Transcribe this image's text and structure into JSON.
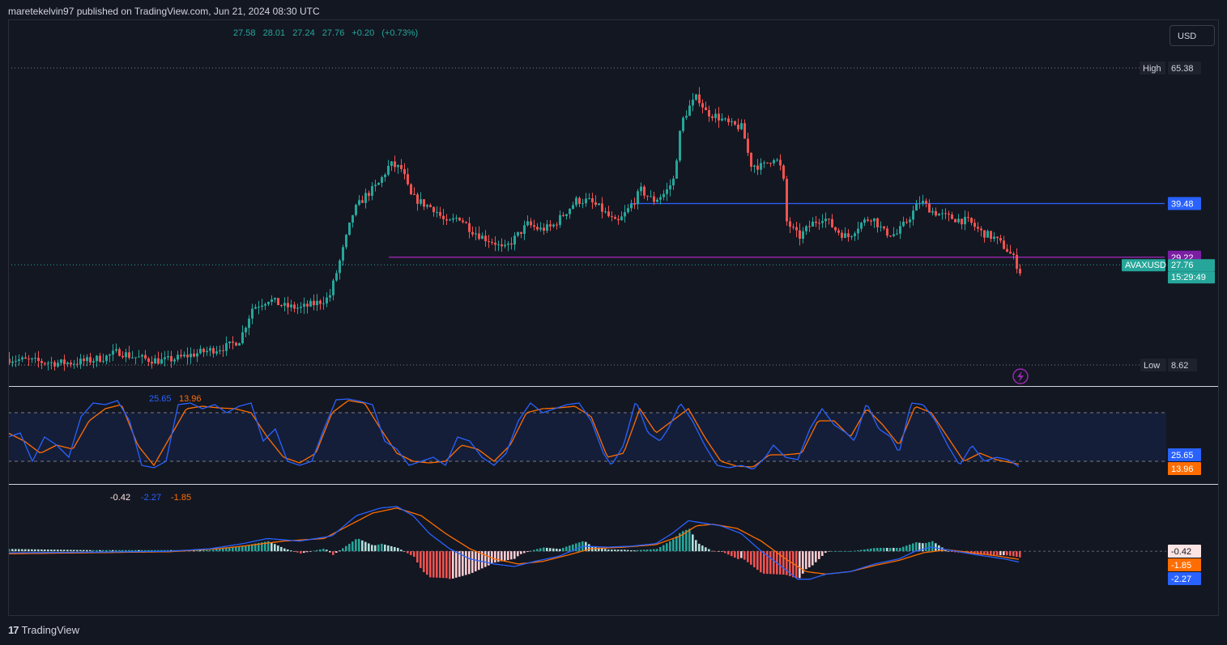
{
  "header": {
    "published": "maretekelvin97 published on TradingView.com, Jun 21, 2024 08:30 UTC"
  },
  "ohlc": {
    "open": "27.58",
    "high": "28.01",
    "low": "27.24",
    "close": "27.76",
    "change": "+0.20 (+0.73%)"
  },
  "currency_button": "USD",
  "footer": {
    "brand": "TradingView",
    "logo_text": "17"
  },
  "colors": {
    "bg": "#131722",
    "up": "#26a69a",
    "down": "#ef5350",
    "blue_line": "#2962ff",
    "purple_line": "#9c27b0",
    "stoch_k": "#2962ff",
    "stoch_d": "#ff6d00",
    "hist_up": "#26a69a",
    "hist_down": "#ef5350"
  },
  "chart_data": [
    {
      "type": "candlestick",
      "symbol": "AVAXUSD",
      "price_labels": {
        "high_label": "High",
        "high": 65.38,
        "low_label": "Low",
        "low": 8.62,
        "resistance": 39.48,
        "support": 29.22,
        "current": 27.76,
        "countdown": "15:29:49"
      },
      "ylim": [
        8.62,
        65.38
      ],
      "close_path": [
        [
          0,
          9.8
        ],
        [
          20,
          9.5
        ],
        [
          40,
          9.2
        ],
        [
          60,
          9.0
        ],
        [
          80,
          9.1
        ],
        [
          100,
          9.5
        ],
        [
          120,
          10.2
        ],
        [
          135,
          11.2
        ],
        [
          150,
          10.3
        ],
        [
          170,
          9.7
        ],
        [
          190,
          9.4
        ],
        [
          210,
          10.0
        ],
        [
          230,
          10.8
        ],
        [
          250,
          11.5
        ],
        [
          270,
          12.2
        ],
        [
          285,
          13.5
        ],
        [
          300,
          19.5
        ],
        [
          320,
          21.2
        ],
        [
          340,
          19.8
        ],
        [
          360,
          19.5
        ],
        [
          380,
          20.5
        ],
        [
          395,
          21.5
        ],
        [
          410,
          29.5
        ],
        [
          425,
          38.0
        ],
        [
          440,
          41.0
        ],
        [
          455,
          43.0
        ],
        [
          470,
          47.0
        ],
        [
          485,
          46.0
        ],
        [
          495,
          41.0
        ],
        [
          510,
          39.5
        ],
        [
          525,
          38.5
        ],
        [
          540,
          35.5
        ],
        [
          555,
          37.0
        ],
        [
          570,
          34.5
        ],
        [
          585,
          33.0
        ],
        [
          600,
          32.0
        ],
        [
          610,
          30.5
        ],
        [
          625,
          33.0
        ],
        [
          640,
          35.5
        ],
        [
          655,
          34.5
        ],
        [
          670,
          35.0
        ],
        [
          685,
          37.5
        ],
        [
          700,
          40.0
        ],
        [
          715,
          40.0
        ],
        [
          730,
          38.5
        ],
        [
          750,
          35.5
        ],
        [
          765,
          38.5
        ],
        [
          780,
          42.0
        ],
        [
          795,
          40.0
        ],
        [
          810,
          41.5
        ],
        [
          820,
          44.0
        ],
        [
          830,
          55.0
        ],
        [
          840,
          58.0
        ],
        [
          850,
          60.0
        ],
        [
          860,
          57.0
        ],
        [
          875,
          56.0
        ],
        [
          890,
          54.5
        ],
        [
          905,
          54.0
        ],
        [
          915,
          47.0
        ],
        [
          930,
          46.5
        ],
        [
          945,
          48.5
        ],
        [
          955,
          45.5
        ],
        [
          960,
          36.0
        ],
        [
          975,
          33.0
        ],
        [
          990,
          35.5
        ],
        [
          1005,
          37.0
        ],
        [
          1020,
          34.5
        ],
        [
          1035,
          33.0
        ],
        [
          1050,
          35.5
        ],
        [
          1065,
          37.0
        ],
        [
          1080,
          34.0
        ],
        [
          1095,
          33.5
        ],
        [
          1110,
          36.5
        ],
        [
          1125,
          40.0
        ],
        [
          1140,
          38.0
        ],
        [
          1155,
          37.0
        ],
        [
          1170,
          36.5
        ],
        [
          1185,
          36.0
        ],
        [
          1200,
          34.0
        ],
        [
          1215,
          33.0
        ],
        [
          1230,
          31.0
        ],
        [
          1240,
          29.0
        ],
        [
          1248,
          26.5
        ],
        [
          1255,
          27.5
        ],
        [
          1260,
          27.76
        ]
      ]
    },
    {
      "type": "line",
      "name_values": {
        "k": "25.65",
        "d": "13.96"
      },
      "ylim": [
        0,
        100
      ],
      "bands": [
        20,
        80
      ],
      "k_path": [
        [
          0,
          50
        ],
        [
          15,
          55
        ],
        [
          30,
          20
        ],
        [
          45,
          50
        ],
        [
          60,
          40
        ],
        [
          75,
          25
        ],
        [
          90,
          75
        ],
        [
          105,
          92
        ],
        [
          120,
          90
        ],
        [
          135,
          95
        ],
        [
          150,
          70
        ],
        [
          165,
          15
        ],
        [
          180,
          12
        ],
        [
          195,
          20
        ],
        [
          210,
          90
        ],
        [
          225,
          92
        ],
        [
          240,
          85
        ],
        [
          255,
          90
        ],
        [
          270,
          80
        ],
        [
          285,
          88
        ],
        [
          300,
          92
        ],
        [
          315,
          45
        ],
        [
          330,
          60
        ],
        [
          345,
          20
        ],
        [
          360,
          15
        ],
        [
          375,
          20
        ],
        [
          390,
          60
        ],
        [
          405,
          96
        ],
        [
          420,
          97
        ],
        [
          435,
          94
        ],
        [
          450,
          90
        ],
        [
          465,
          45
        ],
        [
          480,
          35
        ],
        [
          495,
          15
        ],
        [
          510,
          20
        ],
        [
          525,
          25
        ],
        [
          540,
          15
        ],
        [
          555,
          50
        ],
        [
          570,
          45
        ],
        [
          585,
          25
        ],
        [
          600,
          15
        ],
        [
          615,
          30
        ],
        [
          630,
          70
        ],
        [
          645,
          92
        ],
        [
          660,
          80
        ],
        [
          675,
          85
        ],
        [
          690,
          90
        ],
        [
          705,
          92
        ],
        [
          720,
          70
        ],
        [
          735,
          30
        ],
        [
          745,
          15
        ],
        [
          760,
          40
        ],
        [
          775,
          95
        ],
        [
          790,
          55
        ],
        [
          805,
          45
        ],
        [
          815,
          60
        ],
        [
          830,
          92
        ],
        [
          845,
          70
        ],
        [
          860,
          40
        ],
        [
          875,
          15
        ],
        [
          890,
          12
        ],
        [
          905,
          15
        ],
        [
          920,
          10
        ],
        [
          935,
          25
        ],
        [
          945,
          40
        ],
        [
          960,
          25
        ],
        [
          975,
          22
        ],
        [
          990,
          60
        ],
        [
          1005,
          85
        ],
        [
          1020,
          65
        ],
        [
          1035,
          55
        ],
        [
          1045,
          45
        ],
        [
          1060,
          92
        ],
        [
          1075,
          60
        ],
        [
          1090,
          50
        ],
        [
          1100,
          30
        ],
        [
          1115,
          92
        ],
        [
          1130,
          90
        ],
        [
          1145,
          70
        ],
        [
          1160,
          40
        ],
        [
          1175,
          15
        ],
        [
          1190,
          40
        ],
        [
          1205,
          20
        ],
        [
          1220,
          25
        ],
        [
          1235,
          22
        ],
        [
          1250,
          12
        ],
        [
          1260,
          25.65
        ]
      ],
      "d_path": [
        [
          0,
          55
        ],
        [
          20,
          45
        ],
        [
          40,
          30
        ],
        [
          60,
          40
        ],
        [
          80,
          35
        ],
        [
          100,
          70
        ],
        [
          120,
          85
        ],
        [
          140,
          90
        ],
        [
          160,
          40
        ],
        [
          180,
          15
        ],
        [
          200,
          50
        ],
        [
          220,
          85
        ],
        [
          240,
          88
        ],
        [
          260,
          86
        ],
        [
          280,
          85
        ],
        [
          300,
          80
        ],
        [
          320,
          50
        ],
        [
          340,
          25
        ],
        [
          360,
          18
        ],
        [
          380,
          30
        ],
        [
          400,
          80
        ],
        [
          420,
          95
        ],
        [
          440,
          92
        ],
        [
          460,
          60
        ],
        [
          480,
          30
        ],
        [
          500,
          20
        ],
        [
          520,
          18
        ],
        [
          540,
          20
        ],
        [
          560,
          40
        ],
        [
          580,
          35
        ],
        [
          600,
          20
        ],
        [
          620,
          40
        ],
        [
          640,
          80
        ],
        [
          660,
          85
        ],
        [
          680,
          86
        ],
        [
          700,
          88
        ],
        [
          720,
          75
        ],
        [
          740,
          25
        ],
        [
          760,
          30
        ],
        [
          780,
          85
        ],
        [
          800,
          55
        ],
        [
          820,
          70
        ],
        [
          840,
          85
        ],
        [
          860,
          50
        ],
        [
          880,
          20
        ],
        [
          900,
          14
        ],
        [
          920,
          13
        ],
        [
          940,
          28
        ],
        [
          960,
          28
        ],
        [
          980,
          30
        ],
        [
          1000,
          70
        ],
        [
          1020,
          70
        ],
        [
          1040,
          50
        ],
        [
          1060,
          85
        ],
        [
          1080,
          65
        ],
        [
          1100,
          40
        ],
        [
          1120,
          88
        ],
        [
          1140,
          80
        ],
        [
          1160,
          50
        ],
        [
          1180,
          20
        ],
        [
          1200,
          30
        ],
        [
          1220,
          22
        ],
        [
          1240,
          18
        ],
        [
          1260,
          13.96
        ]
      ]
    },
    {
      "type": "bar",
      "name_values": {
        "hist": "-0.42",
        "macd": "-2.27",
        "signal": "-1.85"
      },
      "ylim": [
        -6.5,
        11
      ],
      "macd_path": [
        [
          0,
          -0.3
        ],
        [
          100,
          -0.2
        ],
        [
          200,
          0.0
        ],
        [
          250,
          0.5
        ],
        [
          290,
          1.5
        ],
        [
          320,
          2.5
        ],
        [
          360,
          2.0
        ],
        [
          400,
          3.0
        ],
        [
          430,
          7.0
        ],
        [
          460,
          8.5
        ],
        [
          480,
          8.8
        ],
        [
          500,
          7.0
        ],
        [
          520,
          3.5
        ],
        [
          545,
          0.5
        ],
        [
          570,
          -1.5
        ],
        [
          600,
          -2.5
        ],
        [
          625,
          -3.0
        ],
        [
          650,
          -2.0
        ],
        [
          680,
          -1.0
        ],
        [
          710,
          1.0
        ],
        [
          740,
          0.8
        ],
        [
          770,
          1.0
        ],
        [
          800,
          1.5
        ],
        [
          820,
          3.5
        ],
        [
          840,
          6.0
        ],
        [
          860,
          5.5
        ],
        [
          880,
          5.0
        ],
        [
          905,
          3.5
        ],
        [
          930,
          0.0
        ],
        [
          955,
          -3.0
        ],
        [
          975,
          -5.5
        ],
        [
          990,
          -5.5
        ],
        [
          1010,
          -4.5
        ],
        [
          1040,
          -4.0
        ],
        [
          1070,
          -2.5
        ],
        [
          1100,
          -1.5
        ],
        [
          1120,
          0.0
        ],
        [
          1140,
          0.8
        ],
        [
          1170,
          0.0
        ],
        [
          1200,
          -0.8
        ],
        [
          1230,
          -1.5
        ],
        [
          1250,
          -2.2
        ],
        [
          1260,
          -2.27
        ]
      ],
      "signal_path": [
        [
          0,
          -0.5
        ],
        [
          100,
          -0.3
        ],
        [
          200,
          -0.1
        ],
        [
          260,
          0.5
        ],
        [
          300,
          1.2
        ],
        [
          340,
          2.0
        ],
        [
          390,
          2.5
        ],
        [
          420,
          5.0
        ],
        [
          450,
          7.5
        ],
        [
          480,
          8.5
        ],
        [
          510,
          7.0
        ],
        [
          540,
          3.5
        ],
        [
          570,
          0.5
        ],
        [
          600,
          -1.5
        ],
        [
          630,
          -2.5
        ],
        [
          660,
          -2.0
        ],
        [
          690,
          -0.8
        ],
        [
          720,
          0.5
        ],
        [
          760,
          0.8
        ],
        [
          800,
          1.3
        ],
        [
          830,
          3.0
        ],
        [
          850,
          5.0
        ],
        [
          870,
          5.3
        ],
        [
          900,
          4.5
        ],
        [
          930,
          2.0
        ],
        [
          960,
          -1.5
        ],
        [
          985,
          -4.0
        ],
        [
          1010,
          -4.5
        ],
        [
          1040,
          -4.0
        ],
        [
          1070,
          -2.8
        ],
        [
          1100,
          -1.8
        ],
        [
          1130,
          -0.3
        ],
        [
          1160,
          0.3
        ],
        [
          1190,
          -0.3
        ],
        [
          1220,
          -0.9
        ],
        [
          1240,
          -1.4
        ],
        [
          1260,
          -1.85
        ]
      ]
    }
  ]
}
